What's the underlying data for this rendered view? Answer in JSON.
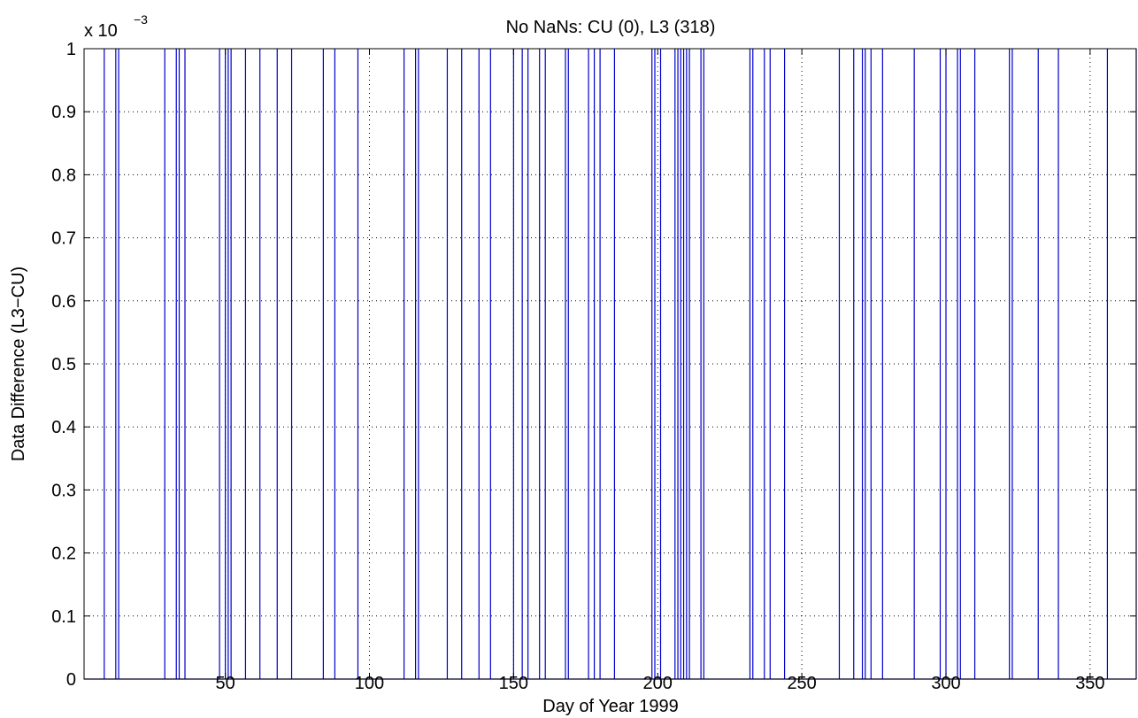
{
  "chart_data": {
    "type": "line",
    "title": "No NaNs:  CU (0), L3 (318)",
    "xlabel": "Day of Year 1999",
    "ylabel": "Data Difference (L3−CU)",
    "exponent_label": "x 10",
    "exponent_power": "−3",
    "xlim": [
      1,
      366
    ],
    "ylim": [
      0,
      1
    ],
    "xticks": [
      50,
      100,
      150,
      200,
      250,
      300,
      350
    ],
    "xtick_labels": [
      "50",
      "100",
      "150",
      "200",
      "250",
      "300",
      "350"
    ],
    "yticks": [
      0,
      0.1,
      0.2,
      0.3,
      0.4,
      0.5,
      0.6,
      0.7,
      0.8,
      0.9,
      1
    ],
    "ytick_labels": [
      "0",
      "0.1",
      "0.2",
      "0.3",
      "0.4",
      "0.5",
      "0.6",
      "0.7",
      "0.8",
      "0.9",
      "1"
    ],
    "grid": true,
    "series_color": "#0000cc",
    "series": [
      {
        "spike_days": [
          8,
          12,
          13,
          29,
          33,
          34,
          36,
          48,
          50,
          51,
          52,
          57,
          62,
          68,
          73,
          84,
          88,
          96,
          112,
          116,
          117,
          127,
          132,
          138,
          142,
          150,
          153,
          155,
          159,
          161,
          168,
          169,
          176,
          178,
          180,
          185,
          198,
          199,
          201,
          206,
          207,
          208,
          209,
          210,
          211,
          215,
          216,
          232,
          233,
          237,
          239,
          244,
          263,
          268,
          271,
          272,
          274,
          278,
          289,
          298,
          300,
          304,
          305,
          310,
          322,
          323,
          332,
          339,
          356,
          366
        ],
        "spike_value": 1,
        "baseline": 0
      }
    ]
  }
}
